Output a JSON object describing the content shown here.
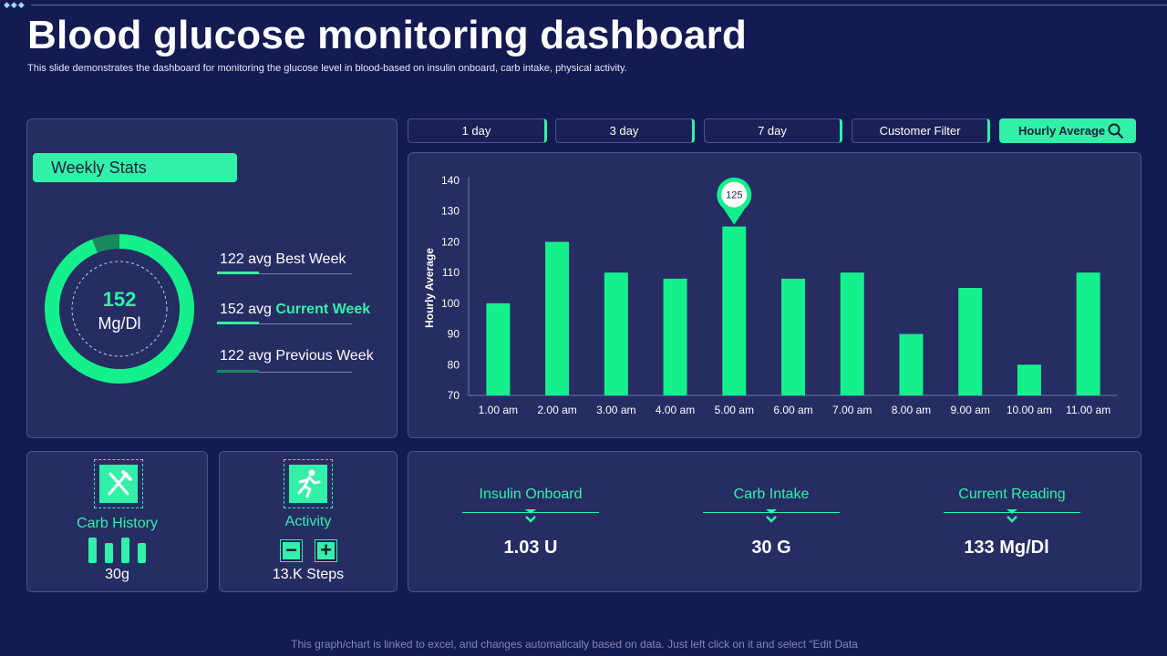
{
  "header": {
    "decor": "◆◆◆",
    "title": "Blood glucose monitoring dashboard",
    "subtitle": "This slide demonstrates the dashboard for monitoring the glucose level in blood-based on insulin onboard, carb intake, physical activity."
  },
  "weekly_stats": {
    "label": "Weekly Stats",
    "donut_value": "152",
    "donut_unit": "Mg/Dl",
    "donut_fraction": 0.94,
    "stats": [
      {
        "value": "122 avg",
        "label": "Best Week"
      },
      {
        "value": "152 avg",
        "label": "Current Week"
      },
      {
        "value": "122 avg",
        "label": "Previous Week"
      }
    ]
  },
  "filters": [
    "1 day",
    "3 day",
    "7 day",
    "Customer Filter",
    "Hourly Average"
  ],
  "chart_data": {
    "type": "bar",
    "ylabel": "Hourly Average",
    "categories": [
      "1.00 am",
      "2.00 am",
      "3.00 am",
      "4.00 am",
      "5.00 am",
      "6.00 am",
      "7.00 am",
      "8.00 am",
      "9.00 am",
      "10.00 am",
      "11.00 am"
    ],
    "values": [
      100,
      120,
      110,
      108,
      125,
      108,
      110,
      90,
      105,
      80,
      110
    ],
    "ylim": [
      70,
      140
    ],
    "yticks": [
      70,
      80,
      90,
      100,
      110,
      120,
      130,
      140
    ],
    "highlight": {
      "category": "5.00 am",
      "label": "125"
    },
    "bar_color": "#14f08c",
    "grid": false
  },
  "cards": {
    "carb_history": {
      "label": "Carb History",
      "value": "30g",
      "icon": "utensils-icon"
    },
    "activity": {
      "label": "Activity",
      "value": "13.K Steps",
      "icon": "running-person-icon",
      "minus": "−",
      "plus": "+"
    }
  },
  "metrics": [
    {
      "label": "Insulin  Onboard",
      "value": "1.03 U"
    },
    {
      "label": "Carb Intake",
      "value": "30 G"
    },
    {
      "label": "Current  Reading",
      "value": "133 Mg/Dl"
    }
  ],
  "colors": {
    "background": "#141a52",
    "panel": "#262d63",
    "accent": "#33f0a8",
    "bar": "#14f08c"
  },
  "footer": "This graph/chart is linked to excel, and changes automatically based on data. Just left click on it and select “Edit Data"
}
